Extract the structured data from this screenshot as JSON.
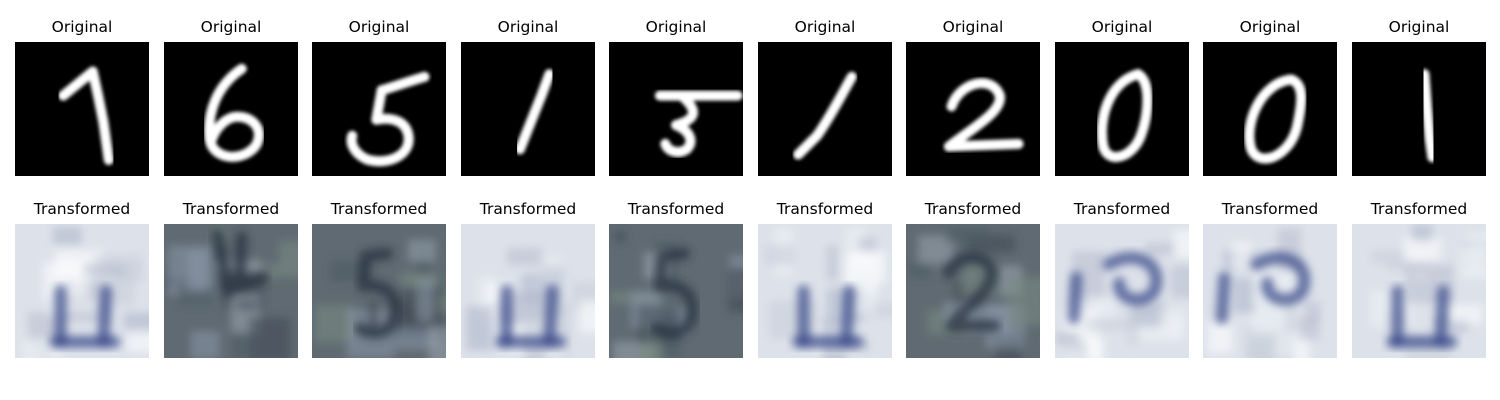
{
  "rows": [
    {
      "title": "Original",
      "kind": "mnist",
      "digits": [
        "1",
        "6",
        "5",
        "1",
        "3",
        "1",
        "2",
        "0",
        "0",
        "1"
      ]
    },
    {
      "title": "Transformed",
      "kind": "svhn",
      "digits": [
        "1",
        "4",
        "5",
        "1",
        "5",
        "1",
        "2",
        "0",
        "0",
        "1"
      ],
      "tones": [
        "light",
        "dark",
        "dark",
        "light",
        "dark",
        "light",
        "dark",
        "light",
        "light",
        "light"
      ]
    }
  ]
}
